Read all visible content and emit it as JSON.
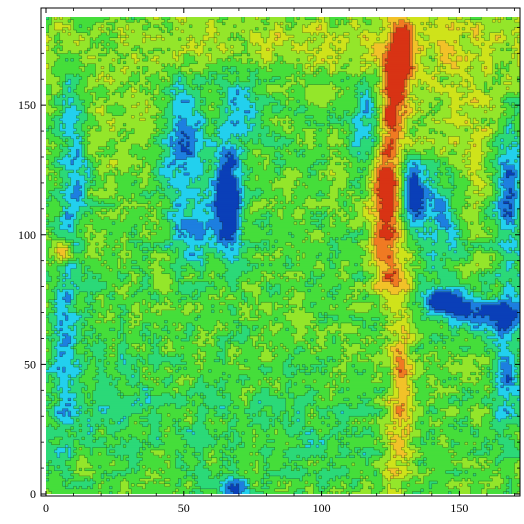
{
  "chart_data": {
    "type": "heatmap",
    "title": "",
    "xlabel": "",
    "ylabel": "",
    "xlim": [
      0,
      172
    ],
    "ylim": [
      0,
      184
    ],
    "x_ticks": [
      0,
      50,
      100,
      150
    ],
    "y_ticks": [
      0,
      50,
      100,
      150
    ],
    "x_tick_labels": [
      "0",
      "50",
      "100",
      "150"
    ],
    "y_tick_labels": [
      "0",
      "50",
      "100",
      "150"
    ],
    "colormap": [
      "#0a3fb8",
      "#1d7fe0",
      "#22d0ee",
      "#2bd978",
      "#45de3a",
      "#94e62a",
      "#cfe31a",
      "#f2c228",
      "#f07a22",
      "#d83314"
    ],
    "value_range": [
      0,
      1
    ],
    "contour_lines": true,
    "frame": true,
    "features": [
      {
        "name": "bright-strip-top",
        "cx": 110,
        "cy": 175,
        "sx": 80,
        "sy": 10,
        "amp": 0.16
      },
      {
        "name": "bright-band-upper-right",
        "cx": 152,
        "cy": 138,
        "sx": 22,
        "sy": 22,
        "amp": 0.16
      },
      {
        "name": "bright-patch-left",
        "cx": 18,
        "cy": 140,
        "sx": 14,
        "sy": 14,
        "amp": 0.1
      },
      {
        "name": "ridge-red-top",
        "cx": 129,
        "cy": 172,
        "sx": 3,
        "sy": 10,
        "amp": 0.5
      },
      {
        "name": "ridge-red-upper",
        "cx": 126,
        "cy": 150,
        "sx": 3.5,
        "sy": 14,
        "amp": 0.42
      },
      {
        "name": "ridge-red-mid",
        "cx": 123,
        "cy": 115,
        "sx": 4,
        "sy": 14,
        "amp": 0.55
      },
      {
        "name": "ridge-red-low",
        "cx": 125,
        "cy": 85,
        "sx": 4,
        "sy": 10,
        "amp": 0.35
      },
      {
        "name": "ridge-orange-lower",
        "cx": 129,
        "cy": 45,
        "sx": 3,
        "sy": 22,
        "amp": 0.3
      },
      {
        "name": "ridge-yellow-bottom",
        "cx": 126,
        "cy": 15,
        "sx": 3,
        "sy": 15,
        "amp": 0.18
      },
      {
        "name": "orange-spot-left",
        "cx": 6,
        "cy": 93,
        "sx": 2.2,
        "sy": 3,
        "amp": 0.42
      },
      {
        "name": "blue-stroke-1",
        "cx": 50,
        "cy": 135,
        "sx": 5,
        "sy": 18,
        "amp": -0.34
      },
      {
        "name": "blue-stroke-1b",
        "cx": 55,
        "cy": 100,
        "sx": 6,
        "sy": 8,
        "amp": -0.22
      },
      {
        "name": "blue-stroke-2",
        "cx": 66,
        "cy": 115,
        "sx": 3.5,
        "sy": 14,
        "amp": -0.55
      },
      {
        "name": "blue-stroke-2b",
        "cx": 72,
        "cy": 150,
        "sx": 5,
        "sy": 10,
        "amp": -0.25
      },
      {
        "name": "blue-stroke-3",
        "cx": 10,
        "cy": 130,
        "sx": 4,
        "sy": 22,
        "amp": -0.3
      },
      {
        "name": "blue-stroke-3b",
        "cx": 7,
        "cy": 60,
        "sx": 3,
        "sy": 25,
        "amp": -0.25
      },
      {
        "name": "blue-stroke-4",
        "cx": 117,
        "cy": 140,
        "sx": 4,
        "sy": 15,
        "amp": -0.3
      },
      {
        "name": "blue-stroke-5",
        "cx": 133,
        "cy": 118,
        "sx": 3,
        "sy": 10,
        "amp": -0.5
      },
      {
        "name": "blue-stroke-6",
        "cx": 143,
        "cy": 110,
        "sx": 5,
        "sy": 14,
        "amp": -0.3
      },
      {
        "name": "blue-blob-7",
        "cx": 145,
        "cy": 75,
        "sx": 6,
        "sy": 3,
        "amp": -0.55
      },
      {
        "name": "blue-band-8",
        "cx": 160,
        "cy": 70,
        "sx": 10,
        "sy": 4,
        "amp": -0.4
      },
      {
        "name": "blue-stroke-9",
        "cx": 168,
        "cy": 120,
        "sx": 4,
        "sy": 20,
        "amp": -0.4
      },
      {
        "name": "blue-stroke-9b",
        "cx": 167,
        "cy": 50,
        "sx": 3,
        "sy": 18,
        "amp": -0.3
      },
      {
        "name": "blue-dot-bottom",
        "cx": 68,
        "cy": 3,
        "sx": 3,
        "sy": 3,
        "amp": -0.4
      },
      {
        "name": "green-lower-left",
        "cx": 20,
        "cy": 40,
        "sx": 20,
        "sy": 20,
        "amp": -0.08
      },
      {
        "name": "green-lower-mid",
        "cx": 90,
        "cy": 20,
        "sx": 25,
        "sy": 15,
        "amp": -0.06
      }
    ]
  }
}
